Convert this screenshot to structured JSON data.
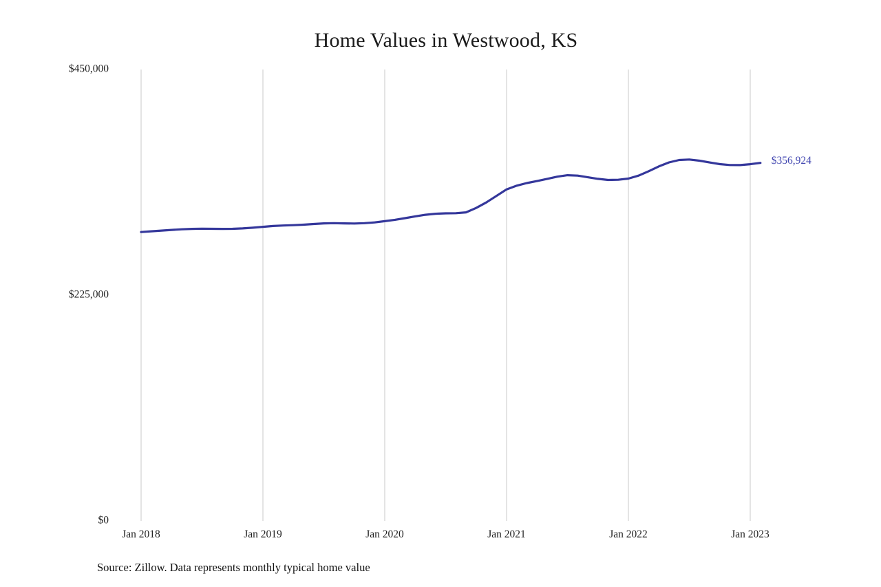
{
  "page": {
    "title": "Home Values in Westwood, KS",
    "source_note": "Source: Zillow. Data represents monthly typical home value"
  },
  "chart_data": {
    "type": "line",
    "title": "Home Values in Westwood, KS",
    "xlabel": "",
    "ylabel": "",
    "ylim": [
      0,
      450000
    ],
    "grid": "vertical-only",
    "legend": "none",
    "series_name": "Monthly typical home value",
    "line_color": "#34379b",
    "grid_color": "#c9c9c9",
    "axis_text_color": "#222222",
    "end_label": "$356,924",
    "end_label_color": "#4146b0",
    "y_ticks": [
      {
        "value": 0,
        "label": "$0"
      },
      {
        "value": 225000,
        "label": "$225,000"
      },
      {
        "value": 450000,
        "label": "$450,000"
      }
    ],
    "x_ticks": [
      {
        "month_index": 0,
        "label": "Jan 2018"
      },
      {
        "month_index": 12,
        "label": "Jan 2019"
      },
      {
        "month_index": 24,
        "label": "Jan 2020"
      },
      {
        "month_index": 36,
        "label": "Jan 2021"
      },
      {
        "month_index": 48,
        "label": "Jan 2022"
      },
      {
        "month_index": 60,
        "label": "Jan 2023"
      }
    ],
    "x": [
      "2018-01",
      "2018-02",
      "2018-03",
      "2018-04",
      "2018-05",
      "2018-06",
      "2018-07",
      "2018-08",
      "2018-09",
      "2018-10",
      "2018-11",
      "2018-12",
      "2019-01",
      "2019-02",
      "2019-03",
      "2019-04",
      "2019-05",
      "2019-06",
      "2019-07",
      "2019-08",
      "2019-09",
      "2019-10",
      "2019-11",
      "2019-12",
      "2020-01",
      "2020-02",
      "2020-03",
      "2020-04",
      "2020-05",
      "2020-06",
      "2020-07",
      "2020-08",
      "2020-09",
      "2020-10",
      "2020-11",
      "2020-12",
      "2021-01",
      "2021-02",
      "2021-03",
      "2021-04",
      "2021-05",
      "2021-06",
      "2021-07",
      "2021-08",
      "2021-09",
      "2021-10",
      "2021-11",
      "2021-12",
      "2022-01",
      "2022-02",
      "2022-03",
      "2022-04",
      "2022-05",
      "2022-06",
      "2022-07",
      "2022-08",
      "2022-09",
      "2022-10",
      "2022-11",
      "2022-12",
      "2023-01",
      "2023-02"
    ],
    "values": [
      288000,
      288700,
      289400,
      290100,
      290700,
      291100,
      291300,
      291200,
      291100,
      291200,
      291600,
      292300,
      293200,
      294000,
      294500,
      294800,
      295300,
      296000,
      296600,
      296800,
      296600,
      296500,
      296800,
      297600,
      298800,
      300200,
      301800,
      303600,
      305200,
      306200,
      306600,
      306800,
      307600,
      312000,
      317500,
      324000,
      330500,
      334200,
      336800,
      338800,
      341000,
      343200,
      344600,
      344200,
      342600,
      341000,
      339900,
      340100,
      341300,
      344200,
      348600,
      353400,
      357400,
      359800,
      360300,
      359100,
      357300,
      355700,
      354800,
      354700,
      355600,
      356924
    ]
  }
}
